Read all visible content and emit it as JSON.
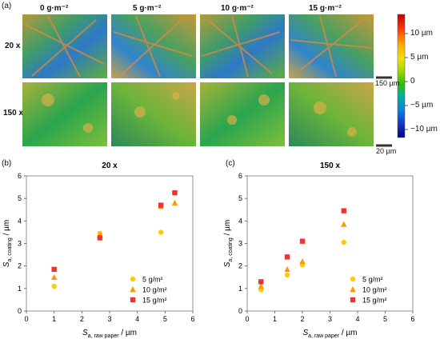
{
  "panel_labels": {
    "a": "(a)",
    "b": "(b)",
    "c": "(c)"
  },
  "image_grid": {
    "column_headers": [
      "0 g·m⁻²",
      "5 g·m⁻²",
      "10 g·m⁻²",
      "15 g·m⁻²"
    ],
    "row_headers": [
      "20 x",
      "150 x"
    ],
    "scalebars": [
      "150 µm",
      "20 µm"
    ],
    "colorbar": {
      "ticks": [
        "10 µm",
        "5 µm",
        "0",
        "−5 µm",
        "−10 µm"
      ],
      "colors": [
        "#c00000",
        "#ff3b00",
        "#ffb000",
        "#f4e100",
        "#9ed800",
        "#2fc000",
        "#00b0a0",
        "#0a7fe0",
        "#1830c0",
        "#000080"
      ]
    }
  },
  "chart_data": [
    {
      "type": "scatter",
      "title": "20 x",
      "xlabel_main": "S",
      "xlabel_sub": "a, raw paper",
      "xlabel_unit": " / µm",
      "ylabel_main": "S",
      "ylabel_sub": "a, coating",
      "ylabel_unit": " / µm",
      "xlim": [
        0,
        6
      ],
      "ylim": [
        0,
        6
      ],
      "xticks": [
        0,
        1,
        2,
        3,
        4,
        5,
        6
      ],
      "yticks": [
        0,
        1,
        2,
        3,
        4,
        5,
        6
      ],
      "series": [
        {
          "name": "5 g/m²",
          "marker": "circle",
          "color": "#ffcc00",
          "points": [
            {
              "x": 1.0,
              "y": 1.1
            },
            {
              "x": 2.65,
              "y": 3.45
            },
            {
              "x": 4.85,
              "y": 3.5
            }
          ]
        },
        {
          "name": "10 g/m²",
          "marker": "triangle",
          "color": "#ff9900",
          "points": [
            {
              "x": 1.0,
              "y": 1.5
            },
            {
              "x": 2.65,
              "y": 3.38
            },
            {
              "x": 4.85,
              "y": 4.65
            },
            {
              "x": 5.35,
              "y": 4.8
            }
          ]
        },
        {
          "name": "15 g/m²",
          "marker": "square",
          "color": "#ee3333",
          "points": [
            {
              "x": 1.0,
              "y": 1.85
            },
            {
              "x": 2.65,
              "y": 3.25
            },
            {
              "x": 4.85,
              "y": 4.7
            },
            {
              "x": 5.35,
              "y": 5.25
            }
          ]
        }
      ],
      "legend": "bottom-right"
    },
    {
      "type": "scatter",
      "title": "150 x",
      "xlabel_main": "S",
      "xlabel_sub": "a, raw paper",
      "xlabel_unit": " / µm",
      "ylabel_main": "S",
      "ylabel_sub": "a, coating",
      "ylabel_unit": " / µm",
      "xlim": [
        0,
        6
      ],
      "ylim": [
        0,
        6
      ],
      "xticks": [
        0,
        1,
        2,
        3,
        4,
        5,
        6
      ],
      "yticks": [
        0,
        1,
        2,
        3,
        4,
        5,
        6
      ],
      "series": [
        {
          "name": "5 g/m²",
          "marker": "circle",
          "color": "#ffcc00",
          "points": [
            {
              "x": 0.5,
              "y": 0.95
            },
            {
              "x": 1.45,
              "y": 1.6
            },
            {
              "x": 2.0,
              "y": 2.05
            },
            {
              "x": 3.5,
              "y": 3.05
            }
          ]
        },
        {
          "name": "10 g/m²",
          "marker": "triangle",
          "color": "#ff9900",
          "points": [
            {
              "x": 0.5,
              "y": 1.1
            },
            {
              "x": 1.45,
              "y": 1.85
            },
            {
              "x": 2.0,
              "y": 2.2
            },
            {
              "x": 3.5,
              "y": 3.85
            }
          ]
        },
        {
          "name": "15 g/m²",
          "marker": "square",
          "color": "#ee3333",
          "points": [
            {
              "x": 0.5,
              "y": 1.3
            },
            {
              "x": 1.45,
              "y": 2.4
            },
            {
              "x": 2.0,
              "y": 3.1
            },
            {
              "x": 3.5,
              "y": 4.45
            }
          ]
        }
      ],
      "legend": "bottom-right"
    }
  ]
}
